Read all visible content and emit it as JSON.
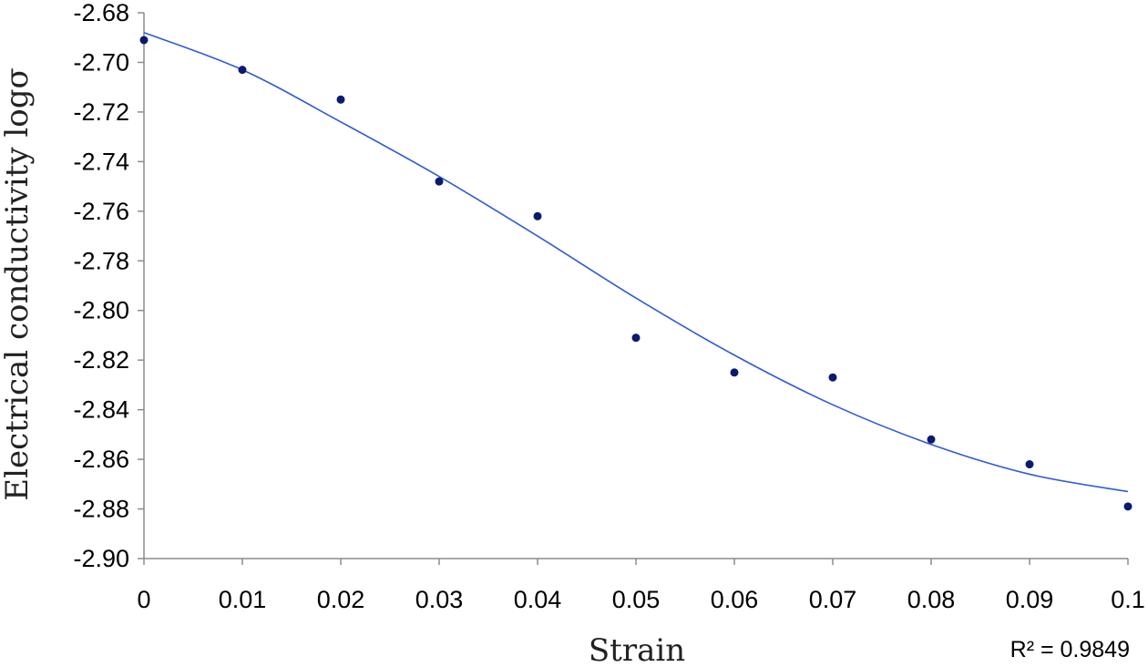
{
  "chart_data": {
    "type": "scatter",
    "xlabel": "Strain",
    "ylabel": "Electrical conductivity logσ",
    "xlim": [
      0,
      0.1
    ],
    "ylim": [
      -2.9,
      -2.68
    ],
    "x_ticks": [
      "0",
      "0.01",
      "0.02",
      "0.03",
      "0.04",
      "0.05",
      "0.06",
      "0.07",
      "0.08",
      "0.09",
      "0.1"
    ],
    "y_ticks": [
      "-2.68",
      "-2.70",
      "-2.72",
      "-2.74",
      "-2.76",
      "-2.78",
      "-2.80",
      "-2.82",
      "-2.84",
      "-2.86",
      "-2.88",
      "-2.90"
    ],
    "grid": false,
    "legend": "none",
    "points": [
      {
        "x": 0.0,
        "y": -2.691
      },
      {
        "x": 0.01,
        "y": -2.703
      },
      {
        "x": 0.02,
        "y": -2.715
      },
      {
        "x": 0.03,
        "y": -2.748
      },
      {
        "x": 0.04,
        "y": -2.762
      },
      {
        "x": 0.05,
        "y": -2.811
      },
      {
        "x": 0.06,
        "y": -2.825
      },
      {
        "x": 0.07,
        "y": -2.827
      },
      {
        "x": 0.08,
        "y": -2.852
      },
      {
        "x": 0.09,
        "y": -2.862
      },
      {
        "x": 0.1,
        "y": -2.879
      }
    ],
    "trendline": {
      "x": [
        0,
        0.01,
        0.02,
        0.03,
        0.04,
        0.05,
        0.06,
        0.07,
        0.08,
        0.09,
        0.1
      ],
      "y": [
        -2.688,
        -2.703,
        -2.724,
        -2.746,
        -2.77,
        -2.795,
        -2.818,
        -2.838,
        -2.854,
        -2.866,
        -2.873
      ]
    },
    "r_squared_label": "R² = 0.9849",
    "colors": {
      "points": "#0a1a6e",
      "trendline": "#2e5bd6",
      "axis": "#8c8c8c"
    }
  }
}
